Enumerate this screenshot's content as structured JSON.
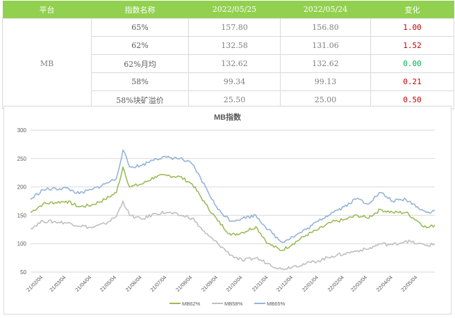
{
  "table": {
    "headers": [
      "平台",
      "指数名称",
      "2022/05/25",
      "2022/05/24",
      "变化"
    ],
    "platform": "MB",
    "rows": [
      {
        "name": "65%",
        "v1": "157.80",
        "v2": "156.80",
        "change": "1.00",
        "change_color": "#c00000"
      },
      {
        "name": "62%",
        "v1": "132.58",
        "v2": "131.06",
        "change": "1.52",
        "change_color": "#c00000"
      },
      {
        "name": "62%月均",
        "v1": "132.62",
        "v2": "132.62",
        "change": "0.00",
        "change_color": "#00b050"
      },
      {
        "name": "58%",
        "v1": "99.34",
        "v2": "99.13",
        "change": "0.21",
        "change_color": "#c00000"
      },
      {
        "name": "58%块矿溢价",
        "v1": "25.50",
        "v2": "25.00",
        "change": "0.50",
        "change_color": "#c00000"
      }
    ],
    "header_color": "#92d050"
  },
  "chart_data": {
    "type": "line",
    "title": "MB指数",
    "ylim": [
      50,
      300
    ],
    "yticks": [
      50,
      100,
      150,
      200,
      250,
      300
    ],
    "grid": true,
    "legend_position": "bottom",
    "x_start": "2021/01/20",
    "x_end": "2022/05/25",
    "xticks": [
      "21/02/04",
      "21/03/04",
      "21/04/04",
      "21/05/04",
      "21/06/04",
      "21/07/04",
      "21/08/04",
      "21/09/04",
      "21/10/04",
      "21/11/04",
      "21/12/04",
      "22/01/04",
      "22/02/04",
      "22/03/04",
      "22/04/04",
      "22/05/04"
    ],
    "series": [
      {
        "name": "MB62%",
        "color": "#9bbb59",
        "points": [
          [
            "2021/01/20",
            155
          ],
          [
            "2021/02/04",
            170
          ],
          [
            "2021/03/04",
            175
          ],
          [
            "2021/03/20",
            165
          ],
          [
            "2021/04/04",
            168
          ],
          [
            "2021/04/20",
            178
          ],
          [
            "2021/05/04",
            190
          ],
          [
            "2021/05/12",
            235
          ],
          [
            "2021/05/20",
            200
          ],
          [
            "2021/06/04",
            205
          ],
          [
            "2021/06/20",
            218
          ],
          [
            "2021/07/04",
            220
          ],
          [
            "2021/07/20",
            218
          ],
          [
            "2021/08/04",
            205
          ],
          [
            "2021/08/20",
            170
          ],
          [
            "2021/09/04",
            140
          ],
          [
            "2021/09/20",
            115
          ],
          [
            "2021/10/04",
            120
          ],
          [
            "2021/10/20",
            130
          ],
          [
            "2021/11/04",
            100
          ],
          [
            "2021/11/20",
            88
          ],
          [
            "2021/12/04",
            100
          ],
          [
            "2021/12/20",
            115
          ],
          [
            "2022/01/04",
            125
          ],
          [
            "2022/01/20",
            138
          ],
          [
            "2022/02/04",
            142
          ],
          [
            "2022/02/20",
            150
          ],
          [
            "2022/03/04",
            145
          ],
          [
            "2022/03/20",
            160
          ],
          [
            "2022/04/04",
            155
          ],
          [
            "2022/04/20",
            155
          ],
          [
            "2022/05/04",
            140
          ],
          [
            "2022/05/15",
            128
          ],
          [
            "2022/05/25",
            132.58
          ]
        ]
      },
      {
        "name": "MB58%",
        "color": "#bfbfbf",
        "points": [
          [
            "2021/01/20",
            127
          ],
          [
            "2021/02/04",
            140
          ],
          [
            "2021/03/04",
            137
          ],
          [
            "2021/04/04",
            128
          ],
          [
            "2021/04/20",
            135
          ],
          [
            "2021/05/04",
            148
          ],
          [
            "2021/05/12",
            175
          ],
          [
            "2021/05/20",
            150
          ],
          [
            "2021/06/04",
            143
          ],
          [
            "2021/06/20",
            153
          ],
          [
            "2021/07/04",
            155
          ],
          [
            "2021/07/20",
            150
          ],
          [
            "2021/08/04",
            145
          ],
          [
            "2021/08/20",
            118
          ],
          [
            "2021/09/04",
            100
          ],
          [
            "2021/09/20",
            80
          ],
          [
            "2021/10/04",
            70
          ],
          [
            "2021/10/20",
            75
          ],
          [
            "2021/11/04",
            65
          ],
          [
            "2021/11/20",
            55
          ],
          [
            "2021/12/04",
            60
          ],
          [
            "2021/12/20",
            65
          ],
          [
            "2022/01/04",
            70
          ],
          [
            "2022/01/20",
            78
          ],
          [
            "2022/02/04",
            82
          ],
          [
            "2022/02/20",
            88
          ],
          [
            "2022/03/04",
            90
          ],
          [
            "2022/03/20",
            100
          ],
          [
            "2022/04/04",
            98
          ],
          [
            "2022/04/20",
            105
          ],
          [
            "2022/05/04",
            100
          ],
          [
            "2022/05/15",
            97
          ],
          [
            "2022/05/25",
            99.34
          ]
        ]
      },
      {
        "name": "MB65%",
        "color": "#95b3d7",
        "points": [
          [
            "2021/01/20",
            178
          ],
          [
            "2021/02/04",
            195
          ],
          [
            "2021/03/04",
            198
          ],
          [
            "2021/03/20",
            188
          ],
          [
            "2021/04/04",
            195
          ],
          [
            "2021/04/20",
            205
          ],
          [
            "2021/05/04",
            215
          ],
          [
            "2021/05/12",
            265
          ],
          [
            "2021/05/20",
            235
          ],
          [
            "2021/06/04",
            238
          ],
          [
            "2021/06/20",
            250
          ],
          [
            "2021/07/04",
            252
          ],
          [
            "2021/07/20",
            250
          ],
          [
            "2021/08/04",
            240
          ],
          [
            "2021/08/20",
            200
          ],
          [
            "2021/09/04",
            160
          ],
          [
            "2021/09/20",
            140
          ],
          [
            "2021/10/04",
            145
          ],
          [
            "2021/10/20",
            150
          ],
          [
            "2021/11/04",
            125
          ],
          [
            "2021/11/20",
            103
          ],
          [
            "2021/12/04",
            112
          ],
          [
            "2021/12/20",
            125
          ],
          [
            "2022/01/04",
            140
          ],
          [
            "2022/01/20",
            155
          ],
          [
            "2022/02/04",
            165
          ],
          [
            "2022/02/20",
            180
          ],
          [
            "2022/03/04",
            170
          ],
          [
            "2022/03/20",
            190
          ],
          [
            "2022/04/04",
            175
          ],
          [
            "2022/04/20",
            178
          ],
          [
            "2022/05/04",
            165
          ],
          [
            "2022/05/15",
            155
          ],
          [
            "2022/05/25",
            157.8
          ]
        ]
      }
    ]
  }
}
